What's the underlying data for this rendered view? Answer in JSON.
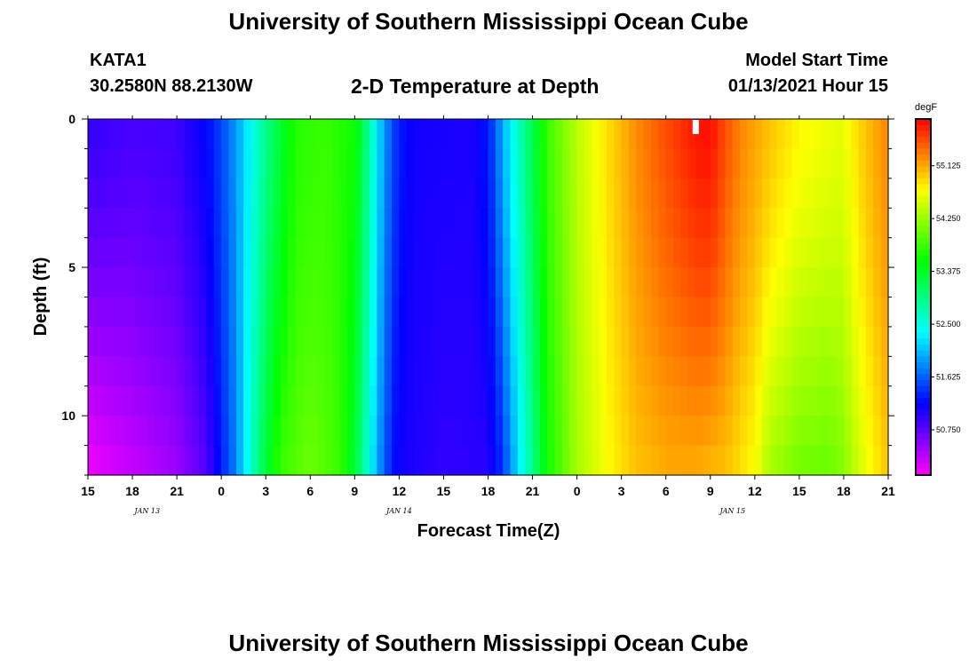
{
  "header": {
    "title": "University of Southern Mississippi Ocean Cube",
    "station": "KATA1",
    "coords": "30.2580N 88.2130W",
    "plot_title": "2-D Temperature at Depth",
    "model_label": "Model Start Time",
    "model_time": "01/13/2021 Hour 15",
    "footer_title": "University of Southern Mississippi Ocean Cube"
  },
  "chart_data": {
    "type": "heatmap",
    "title": "2-D Temperature at Depth",
    "xlabel": "Forecast Time(Z)",
    "ylabel": "Depth (ft)",
    "x_hours_from_start": [
      0,
      54
    ],
    "x_tick_labels": [
      "15",
      "18",
      "21",
      "0",
      "3",
      "6",
      "9",
      "12",
      "15",
      "18",
      "21",
      "0",
      "3",
      "6",
      "9",
      "12",
      "15",
      "18",
      "21"
    ],
    "date_labels": [
      {
        "label": "JAN  13",
        "hour": 4
      },
      {
        "label": "JAN  14",
        "hour": 21
      },
      {
        "label": "JAN  15",
        "hour": 43.5
      }
    ],
    "y_ticks": [
      0,
      5,
      10
    ],
    "y_range": [
      0,
      12
    ],
    "colorbar": {
      "unit": "degF",
      "range": [
        50.0,
        55.9
      ],
      "ticks": [
        "55.125",
        "54.250",
        "53.375",
        "52.500",
        "51.625",
        "50.750"
      ],
      "tick_values": [
        55.125,
        54.25,
        53.375,
        52.5,
        51.625,
        50.75
      ]
    },
    "time_profile_surface_degF": [
      [
        0,
        50.95
      ],
      [
        3,
        50.85
      ],
      [
        6,
        50.9
      ],
      [
        8,
        51.2
      ],
      [
        9,
        51.5
      ],
      [
        10,
        51.9
      ],
      [
        11,
        52.4
      ],
      [
        12,
        52.9
      ],
      [
        13,
        53.3
      ],
      [
        14,
        53.7
      ],
      [
        16,
        53.8
      ],
      [
        18,
        53.6
      ],
      [
        18.5,
        53.2
      ],
      [
        19,
        52.8
      ],
      [
        19.5,
        52.3
      ],
      [
        20,
        51.9
      ],
      [
        20.5,
        51.55
      ],
      [
        21,
        51.3
      ],
      [
        22,
        51.1
      ],
      [
        26,
        51.05
      ],
      [
        27,
        51.3
      ],
      [
        27.5,
        51.6
      ],
      [
        28,
        52.0
      ],
      [
        29,
        52.6
      ],
      [
        30,
        53.2
      ],
      [
        31,
        53.8
      ],
      [
        33,
        54.4
      ],
      [
        35,
        54.85
      ],
      [
        37,
        55.25
      ],
      [
        39,
        55.55
      ],
      [
        41,
        55.8
      ],
      [
        42,
        55.85
      ],
      [
        43,
        55.55
      ],
      [
        44,
        55.3
      ],
      [
        46,
        55.0
      ],
      [
        48,
        54.75
      ],
      [
        50,
        54.65
      ],
      [
        51,
        54.6
      ],
      [
        52,
        54.9
      ],
      [
        54,
        55.3
      ]
    ],
    "time_profile_bottom_degF": [
      [
        0,
        50.05
      ],
      [
        3,
        50.25
      ],
      [
        6,
        50.45
      ],
      [
        8,
        50.8
      ],
      [
        9,
        51.3
      ],
      [
        10,
        51.8
      ],
      [
        11,
        52.6
      ],
      [
        12,
        53.3
      ],
      [
        13,
        53.8
      ],
      [
        15,
        54.05
      ],
      [
        17,
        53.8
      ],
      [
        18,
        53.3
      ],
      [
        18.5,
        52.9
      ],
      [
        19,
        52.4
      ],
      [
        19.5,
        52.0
      ],
      [
        20,
        51.6
      ],
      [
        20.5,
        51.3
      ],
      [
        21,
        51.1
      ],
      [
        24,
        50.95
      ],
      [
        27,
        51.0
      ],
      [
        28,
        51.4
      ],
      [
        28.5,
        51.8
      ],
      [
        29,
        52.2
      ],
      [
        30,
        52.9
      ],
      [
        31,
        53.6
      ],
      [
        33,
        54.3
      ],
      [
        35,
        54.7
      ],
      [
        37,
        55.0
      ],
      [
        39,
        55.1
      ],
      [
        41,
        55.1
      ],
      [
        43,
        55.0
      ],
      [
        45,
        54.7
      ],
      [
        46,
        54.3
      ],
      [
        48,
        54.05
      ],
      [
        50,
        54.0
      ],
      [
        51,
        54.15
      ],
      [
        52,
        54.5
      ],
      [
        54,
        55.0
      ]
    ]
  }
}
